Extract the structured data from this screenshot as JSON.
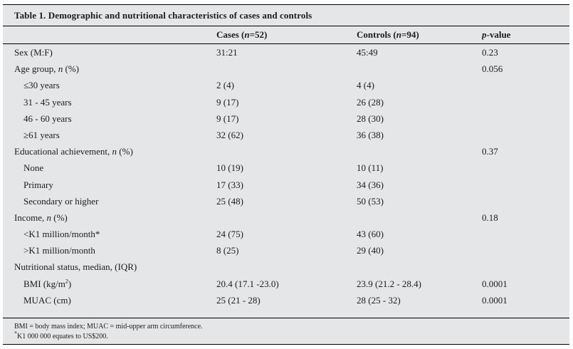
{
  "table": {
    "title": "Table 1. Demographic and nutritional characteristics of cases and controls",
    "header": {
      "col0": "",
      "col1": "Cases (*n*=52)",
      "col2": "Controls (*n*=94)",
      "col3": "*p*-value"
    },
    "rows": [
      {
        "label": "Sex (M:F)",
        "indent": false,
        "cases": "31:21",
        "controls": "45:49",
        "p": "0.23"
      },
      {
        "label": "Age group, *n* (%)",
        "indent": false,
        "cases": "",
        "controls": "",
        "p": "0.056"
      },
      {
        "label": "≤30 years",
        "indent": true,
        "cases": "2 (4)",
        "controls": "4 (4)",
        "p": ""
      },
      {
        "label": "31 - 45 years",
        "indent": true,
        "cases": "9 (17)",
        "controls": "26 (28)",
        "p": ""
      },
      {
        "label": "46 - 60 years",
        "indent": true,
        "cases": "9 (17)",
        "controls": "28 (30)",
        "p": ""
      },
      {
        "label": "≥61 years",
        "indent": true,
        "cases": "32 (62)",
        "controls": "36 (38)",
        "p": ""
      },
      {
        "label": "Educational achievement, *n* (%)",
        "indent": false,
        "cases": "",
        "controls": "",
        "p": "0.37"
      },
      {
        "label": "None",
        "indent": true,
        "cases": "10 (19)",
        "controls": "10 (11)",
        "p": ""
      },
      {
        "label": "Primary",
        "indent": true,
        "cases": "17 (33)",
        "controls": "34 (36)",
        "p": ""
      },
      {
        "label": "Secondary or higher",
        "indent": true,
        "cases": "25 (48)",
        "controls": "50 (53)",
        "p": ""
      },
      {
        "label": "Income, *n* (%)",
        "indent": false,
        "cases": "",
        "controls": "",
        "p": "0.18"
      },
      {
        "label": "<K1 million/month*",
        "indent": true,
        "cases": "24 (75)",
        "controls": "43 (60)",
        "p": ""
      },
      {
        "label": ">K1 million/month",
        "indent": true,
        "cases": "8 (25)",
        "controls": "29 (40)",
        "p": ""
      },
      {
        "label": "Nutritional status, median, (IQR)",
        "indent": false,
        "cases": "",
        "controls": "",
        "p": ""
      },
      {
        "label": "BMI (kg/m^2^)",
        "indent": true,
        "cases": "20.4 (17.1 -23.0)",
        "controls": "23.9 (21.2 - 28.4)",
        "p": "0.0001"
      },
      {
        "label": "MUAC (cm)",
        "indent": true,
        "cases": "25 (21 - 28)",
        "controls": "28 (25 - 32)",
        "p": "0.0001"
      }
    ],
    "footnotes": [
      "BMI = body mass index; MUAC = mid-upper arm circumference.",
      "^*^K1 000 000 equates to US$200."
    ]
  }
}
